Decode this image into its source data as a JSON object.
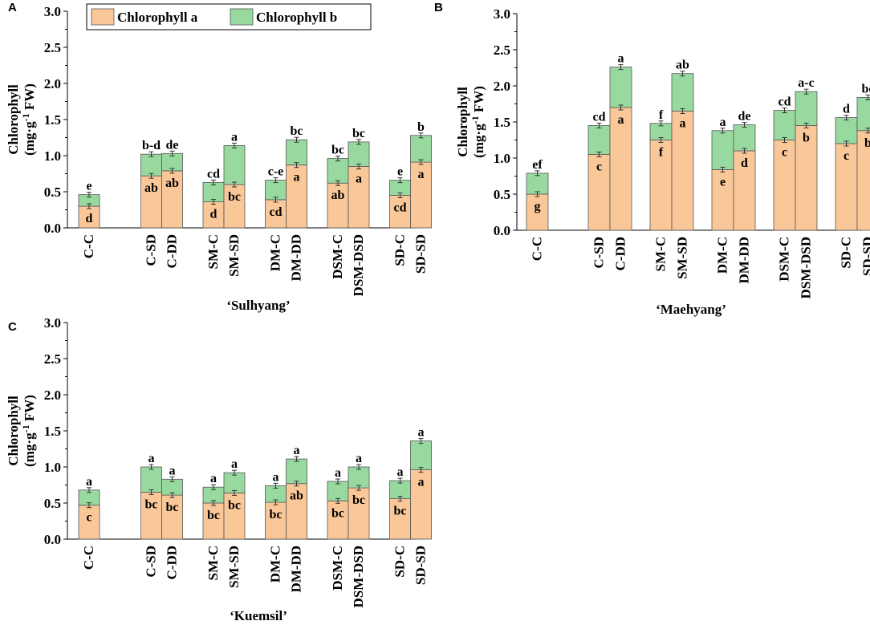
{
  "legend": {
    "items": [
      {
        "label": "Chlorophyll a",
        "color": "#FAC898"
      },
      {
        "label": "Chlorophyll b",
        "color": "#98D9A0"
      }
    ]
  },
  "chart_data": [
    {
      "panel": "A",
      "type": "bar",
      "stacked": true,
      "cultivar": "‘Sulhyang’",
      "ylabel_line1": "Chlorophyll",
      "ylabel_line2": "(mg·g",
      "ylabel_sup": "-1",
      "ylabel_line2_end": " FW)",
      "ylim": [
        0,
        3.0
      ],
      "yticks": [
        "0.0",
        "0.5",
        "1.0",
        "1.5",
        "2.0",
        "2.5",
        "3.0"
      ],
      "categories": [
        "C-C",
        "C-SD",
        "C-DD",
        "SM-C",
        "SM-SD",
        "DM-C",
        "DM-DD",
        "DSM-C",
        "DSM-DSD",
        "SD-C",
        "SD-SD"
      ],
      "groups": [
        [
          0
        ],
        [
          1,
          2
        ],
        [
          3,
          4
        ],
        [
          5,
          6
        ],
        [
          7,
          8
        ],
        [
          9,
          10
        ]
      ],
      "series": [
        {
          "name": "Chlorophyll a",
          "values": [
            0.3,
            0.72,
            0.79,
            0.36,
            0.6,
            0.39,
            0.87,
            0.62,
            0.85,
            0.45,
            0.91
          ],
          "letters": [
            "d",
            "ab",
            "ab",
            "d",
            "bc",
            "cd",
            "a",
            "ab",
            "a",
            "cd",
            "a"
          ]
        },
        {
          "name": "Chlorophyll b",
          "values": [
            0.16,
            0.3,
            0.24,
            0.27,
            0.54,
            0.27,
            0.35,
            0.34,
            0.34,
            0.21,
            0.37
          ],
          "letters": [
            "e",
            "b-d",
            "de",
            "cd",
            "a",
            "c-e",
            "bc",
            "bc",
            "bc",
            "e",
            "b"
          ]
        }
      ]
    },
    {
      "panel": "B",
      "type": "bar",
      "stacked": true,
      "cultivar": "‘Maehyang’",
      "ylabel_line1": "Chlorophyll",
      "ylabel_line2": "(mg·g",
      "ylabel_sup": "-1",
      "ylabel_line2_end": " FW)",
      "ylim": [
        0,
        3.0
      ],
      "yticks": [
        "0.0",
        "0.5",
        "1.0",
        "1.5",
        "2.0",
        "2.5",
        "3.0"
      ],
      "categories": [
        "C-C",
        "C-SD",
        "C-DD",
        "SM-C",
        "SM-SD",
        "DM-C",
        "DM-DD",
        "DSM-C",
        "DSM-DSD",
        "SD-C",
        "SD-SD"
      ],
      "groups": [
        [
          0
        ],
        [
          1,
          2
        ],
        [
          3,
          4
        ],
        [
          5,
          6
        ],
        [
          7,
          8
        ],
        [
          9,
          10
        ]
      ],
      "series": [
        {
          "name": "Chlorophyll a",
          "values": [
            0.5,
            1.05,
            1.7,
            1.25,
            1.65,
            0.84,
            1.1,
            1.25,
            1.45,
            1.2,
            1.38
          ],
          "letters": [
            "g",
            "c",
            "a",
            "f",
            "a",
            "e",
            "d",
            "c",
            "b",
            "c",
            "b"
          ]
        },
        {
          "name": "Chlorophyll b",
          "values": [
            0.29,
            0.4,
            0.56,
            0.23,
            0.52,
            0.54,
            0.36,
            0.41,
            0.47,
            0.36,
            0.46
          ],
          "letters": [
            "ef",
            "cd",
            "a",
            "f",
            "ab",
            "a",
            "de",
            "cd",
            "a-c",
            "d",
            "bc"
          ]
        }
      ]
    },
    {
      "panel": "C",
      "type": "bar",
      "stacked": true,
      "cultivar": "‘Kuemsil’",
      "ylabel_line1": "Chlorophyll",
      "ylabel_line2": "(mg·g",
      "ylabel_sup": "-1",
      "ylabel_line2_end": " FW)",
      "ylim": [
        0,
        3.0
      ],
      "yticks": [
        "0.0",
        "0.5",
        "1.0",
        "1.5",
        "2.0",
        "2.5",
        "3.0"
      ],
      "categories": [
        "C-C",
        "C-SD",
        "C-DD",
        "SM-C",
        "SM-SD",
        "DM-C",
        "DM-DD",
        "DSM-C",
        "DSM-DSD",
        "SD-C",
        "SD-SD"
      ],
      "groups": [
        [
          0
        ],
        [
          1,
          2
        ],
        [
          3,
          4
        ],
        [
          5,
          6
        ],
        [
          7,
          8
        ],
        [
          9,
          10
        ]
      ],
      "series": [
        {
          "name": "Chlorophyll a",
          "values": [
            0.47,
            0.65,
            0.61,
            0.5,
            0.64,
            0.51,
            0.77,
            0.53,
            0.71,
            0.56,
            0.96
          ],
          "letters": [
            "c",
            "bc",
            "bc",
            "bc",
            "bc",
            "bc",
            "ab",
            "bc",
            "bc",
            "bc",
            "a"
          ]
        },
        {
          "name": "Chlorophyll b",
          "values": [
            0.21,
            0.35,
            0.22,
            0.22,
            0.28,
            0.23,
            0.34,
            0.27,
            0.29,
            0.25,
            0.4
          ],
          "letters": [
            "a",
            "a",
            "a",
            "a",
            "a",
            "a",
            "a",
            "a",
            "a",
            "a",
            "a"
          ]
        }
      ]
    }
  ]
}
